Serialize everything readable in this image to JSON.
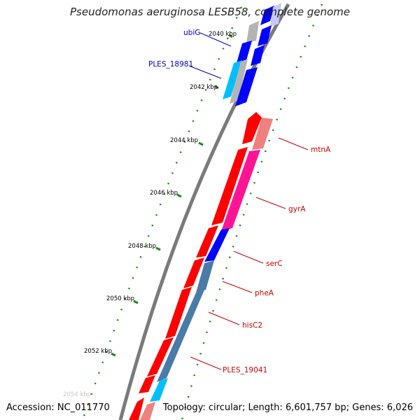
{
  "title": "Pseudomonas aeruginosa LESB58, complete genome",
  "accession": "Accession: NC_011770",
  "summary": "Topology: circular; Length: 6,601,757 bp; Genes: 6,026",
  "ticks": [
    {
      "label": "2040 kbp"
    },
    {
      "label": "2042 kbp"
    },
    {
      "label": "2044 kbp"
    },
    {
      "label": "2046 kbp"
    },
    {
      "label": "2048 kbp"
    },
    {
      "label": "2050 kbp"
    },
    {
      "label": "2052 kbp"
    },
    {
      "label": "2054 kbp"
    }
  ],
  "gene_labels": [
    {
      "name": "ubiG",
      "color": "#0000cc"
    },
    {
      "name": "PLES_18981",
      "color": "#0000cc"
    },
    {
      "name": "mtnA",
      "color": "#cc0000"
    },
    {
      "name": "gyrA",
      "color": "#cc0000"
    },
    {
      "name": "serC",
      "color": "#cc0000"
    },
    {
      "name": "pheA",
      "color": "#cc0000"
    },
    {
      "name": "hisC2",
      "color": "#cc0000"
    },
    {
      "name": "PLES_19041",
      "color": "#cc0000"
    }
  ]
}
